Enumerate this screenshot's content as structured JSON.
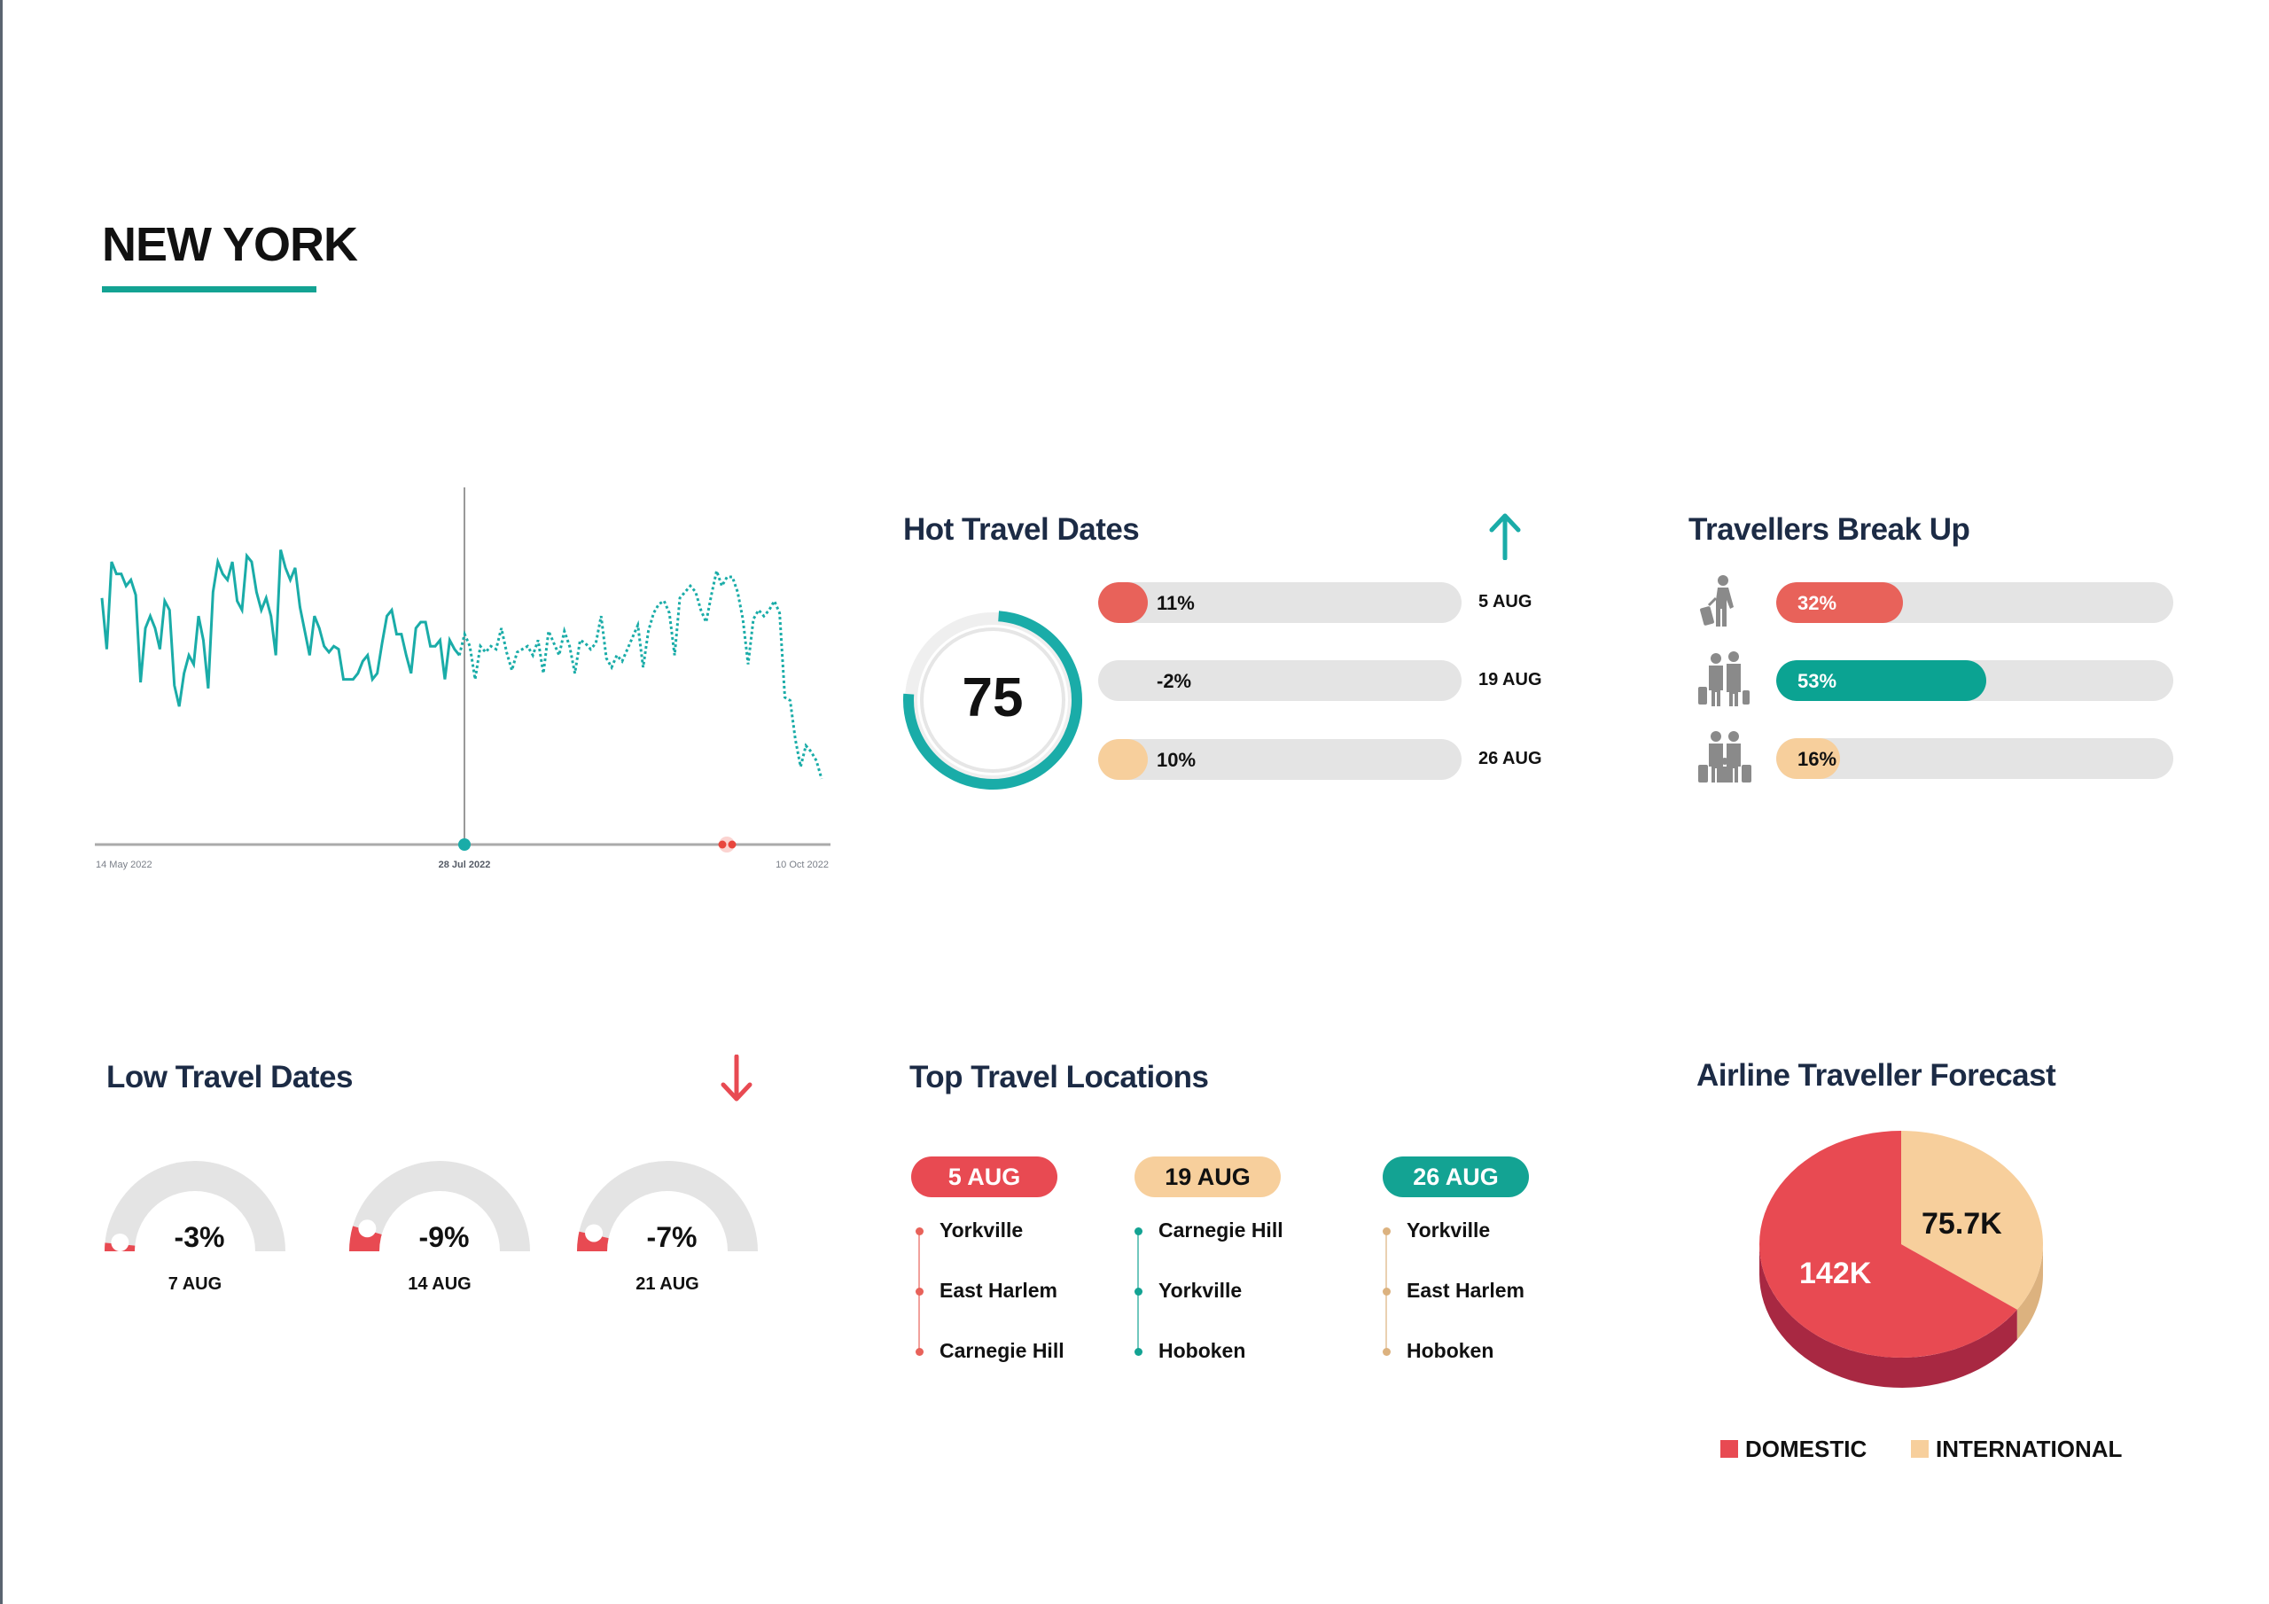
{
  "page": {
    "title": "NEW YORK"
  },
  "colors": {
    "teal": "#1aaca8",
    "teal_dark": "#0ba392",
    "red": "#e84a52",
    "coral": "#e8625a",
    "peach": "#f7cf9c",
    "navy": "#1c2b45",
    "gray_track": "#e4e4e4"
  },
  "chart_data": [
    {
      "type": "line",
      "x_labels": [
        "14 May 2022",
        "28 Jul 2022",
        "10 Oct 2022"
      ],
      "x_range": [
        "14 May 2022",
        "10 Oct 2022"
      ],
      "highlight_date": "28 Jul 2022",
      "grid": false,
      "series": [
        {
          "style": "solid",
          "values": [
            78,
            61,
            90,
            86,
            86,
            82,
            84,
            79,
            50,
            68,
            72,
            68,
            61,
            77,
            74,
            49,
            42,
            53,
            59,
            56,
            72,
            64,
            48,
            80,
            90,
            86,
            84,
            90,
            77,
            74,
            92,
            90,
            80,
            74,
            78,
            72,
            59,
            94,
            88,
            84,
            88,
            75,
            67,
            59,
            72,
            68,
            62,
            60,
            62,
            61,
            51,
            51,
            51,
            53,
            57,
            59,
            51,
            53,
            63,
            72,
            74,
            66,
            66,
            59,
            53,
            68,
            70,
            70,
            62,
            62,
            64,
            51,
            64,
            61,
            59
          ]
        },
        {
          "style": "dotted",
          "values": [
            59,
            66,
            62,
            51,
            62,
            60,
            62,
            61,
            68,
            60,
            54,
            60,
            61,
            62,
            59,
            64,
            53,
            67,
            63,
            59,
            67,
            62,
            53,
            64,
            63,
            61,
            63,
            72,
            58,
            55,
            59,
            57,
            61,
            65,
            69,
            55,
            67,
            73,
            76,
            77,
            73,
            59,
            78,
            80,
            82,
            80,
            74,
            70,
            79,
            87,
            82,
            85,
            85,
            80,
            71,
            56,
            71,
            74,
            72,
            74,
            77,
            73,
            45,
            44,
            31,
            22,
            29,
            27,
            24,
            18
          ]
        }
      ]
    },
    {
      "type": "pie",
      "title": "Airline Traveller Forecast",
      "slices": [
        {
          "name": "DOMESTIC",
          "label": "142K",
          "value": 142000,
          "color": "#e84a52",
          "side_color": "#a82842"
        },
        {
          "name": "INTERNATIONAL",
          "label": "75.7K",
          "value": 75700,
          "color": "#f7cf9c",
          "side_color": "#dcb27f"
        }
      ],
      "legend_position": "bottom"
    }
  ],
  "hot": {
    "title": "Hot Travel Dates",
    "trend_icon": "arrow-up-icon",
    "score": "75",
    "score_percent": 75,
    "rows": [
      {
        "label": "11%",
        "value": 11,
        "date": "5 AUG",
        "color": "#e8625a"
      },
      {
        "label": "-2%",
        "value": -2,
        "date": "19 AUG",
        "color": ""
      },
      {
        "label": "10%",
        "value": 10,
        "date": "26 AUG",
        "color": "#f7cf9c"
      }
    ]
  },
  "travellers": {
    "title": "Travellers Break Up",
    "rows": [
      {
        "icon": "solo-traveller-icon",
        "label": "32%",
        "value": 32,
        "color": "#e8625a",
        "text_color": "#fff"
      },
      {
        "icon": "couple-traveller-icon",
        "label": "53%",
        "value": 53,
        "color": "#0ba392",
        "text_color": "#fff"
      },
      {
        "icon": "family-traveller-icon",
        "label": "16%",
        "value": 16,
        "color": "#f7cf9c",
        "text_color": "#111"
      }
    ]
  },
  "low": {
    "title": "Low Travel Dates",
    "trend_icon": "arrow-down-icon",
    "gauges": [
      {
        "label": "-3%",
        "value": -3,
        "date": "7 AUG"
      },
      {
        "label": "-9%",
        "value": -9,
        "date": "14 AUG"
      },
      {
        "label": "-7%",
        "value": -7,
        "date": "21 AUG"
      }
    ]
  },
  "locations": {
    "title": "Top Travel Locations",
    "columns": [
      {
        "date": "5 AUG",
        "color": "#e84a52",
        "text_color": "#fff",
        "items": [
          "Yorkville",
          "East Harlem",
          "Carnegie Hill"
        ]
      },
      {
        "date": "19 AUG",
        "color": "#f7cf9c",
        "text_color": "#111",
        "items": [
          "Carnegie Hill",
          "Yorkville",
          "Hoboken"
        ]
      },
      {
        "date": "26 AUG",
        "color": "#13a393",
        "text_color": "#fff",
        "items": [
          "Yorkville",
          "East Harlem",
          "Hoboken"
        ]
      }
    ]
  }
}
